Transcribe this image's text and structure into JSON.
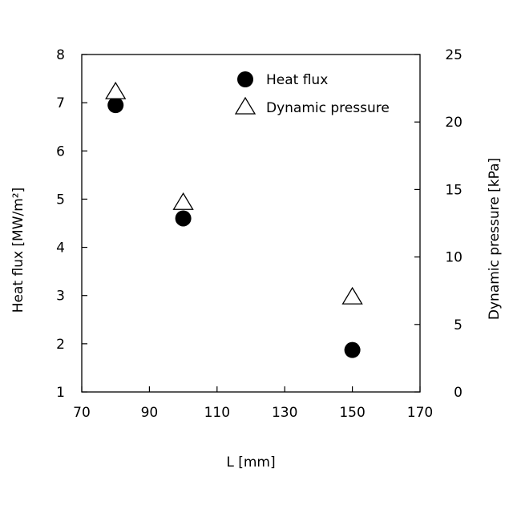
{
  "chart_data": {
    "type": "scatter",
    "xlabel": "L [mm]",
    "ylabel_left": "Heat flux [MW/m²]",
    "ylabel_right": "Dynamic pressure [kPa]",
    "xlim": [
      70,
      170
    ],
    "ylim_left": [
      1,
      8
    ],
    "ylim_right": [
      0,
      25
    ],
    "x_ticks": [
      70,
      90,
      110,
      130,
      150,
      170
    ],
    "y_left_ticks": [
      1,
      2,
      3,
      4,
      5,
      6,
      7,
      8
    ],
    "y_right_ticks": [
      0,
      5,
      10,
      15,
      20,
      25
    ],
    "grid": false,
    "legend_position": "top-right",
    "series": [
      {
        "name": "Heat flux",
        "axis": "left",
        "marker": "filled-circle",
        "color": "#000000",
        "x": [
          80,
          100,
          150
        ],
        "y": [
          6.95,
          4.6,
          1.87
        ]
      },
      {
        "name": "Dynamic pressure",
        "axis": "right",
        "marker": "open-triangle",
        "color": "#000000",
        "x": [
          80,
          100,
          150
        ],
        "y": [
          22.2,
          14.0,
          7.0
        ]
      }
    ]
  }
}
